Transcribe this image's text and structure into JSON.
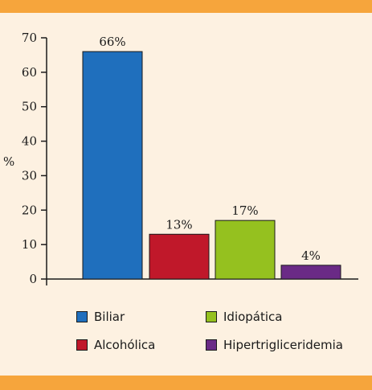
{
  "chart_data": {
    "type": "bar",
    "categories": [
      "Biliar",
      "Alcohólica",
      "Idiopática",
      "Hipertrigliceridemia"
    ],
    "values": [
      66,
      13,
      17,
      4
    ],
    "data_labels": [
      "66%",
      "13%",
      "17%",
      "4%"
    ],
    "colors": [
      "#1f6fbd",
      "#c0182a",
      "#95c11f",
      "#6a2a86"
    ],
    "ylabel": "%",
    "ylim": [
      0,
      70
    ],
    "yticks": [
      0,
      10,
      20,
      30,
      40,
      50,
      60,
      70
    ],
    "legend": {
      "placement": "bottom",
      "entries": [
        "Biliar",
        "Idiopática",
        "Alcohólica",
        "Hipertrigliceridemia"
      ]
    },
    "grid": false
  },
  "frame": {
    "band_color": "#f6a53c",
    "background": "#fdf1e1"
  }
}
